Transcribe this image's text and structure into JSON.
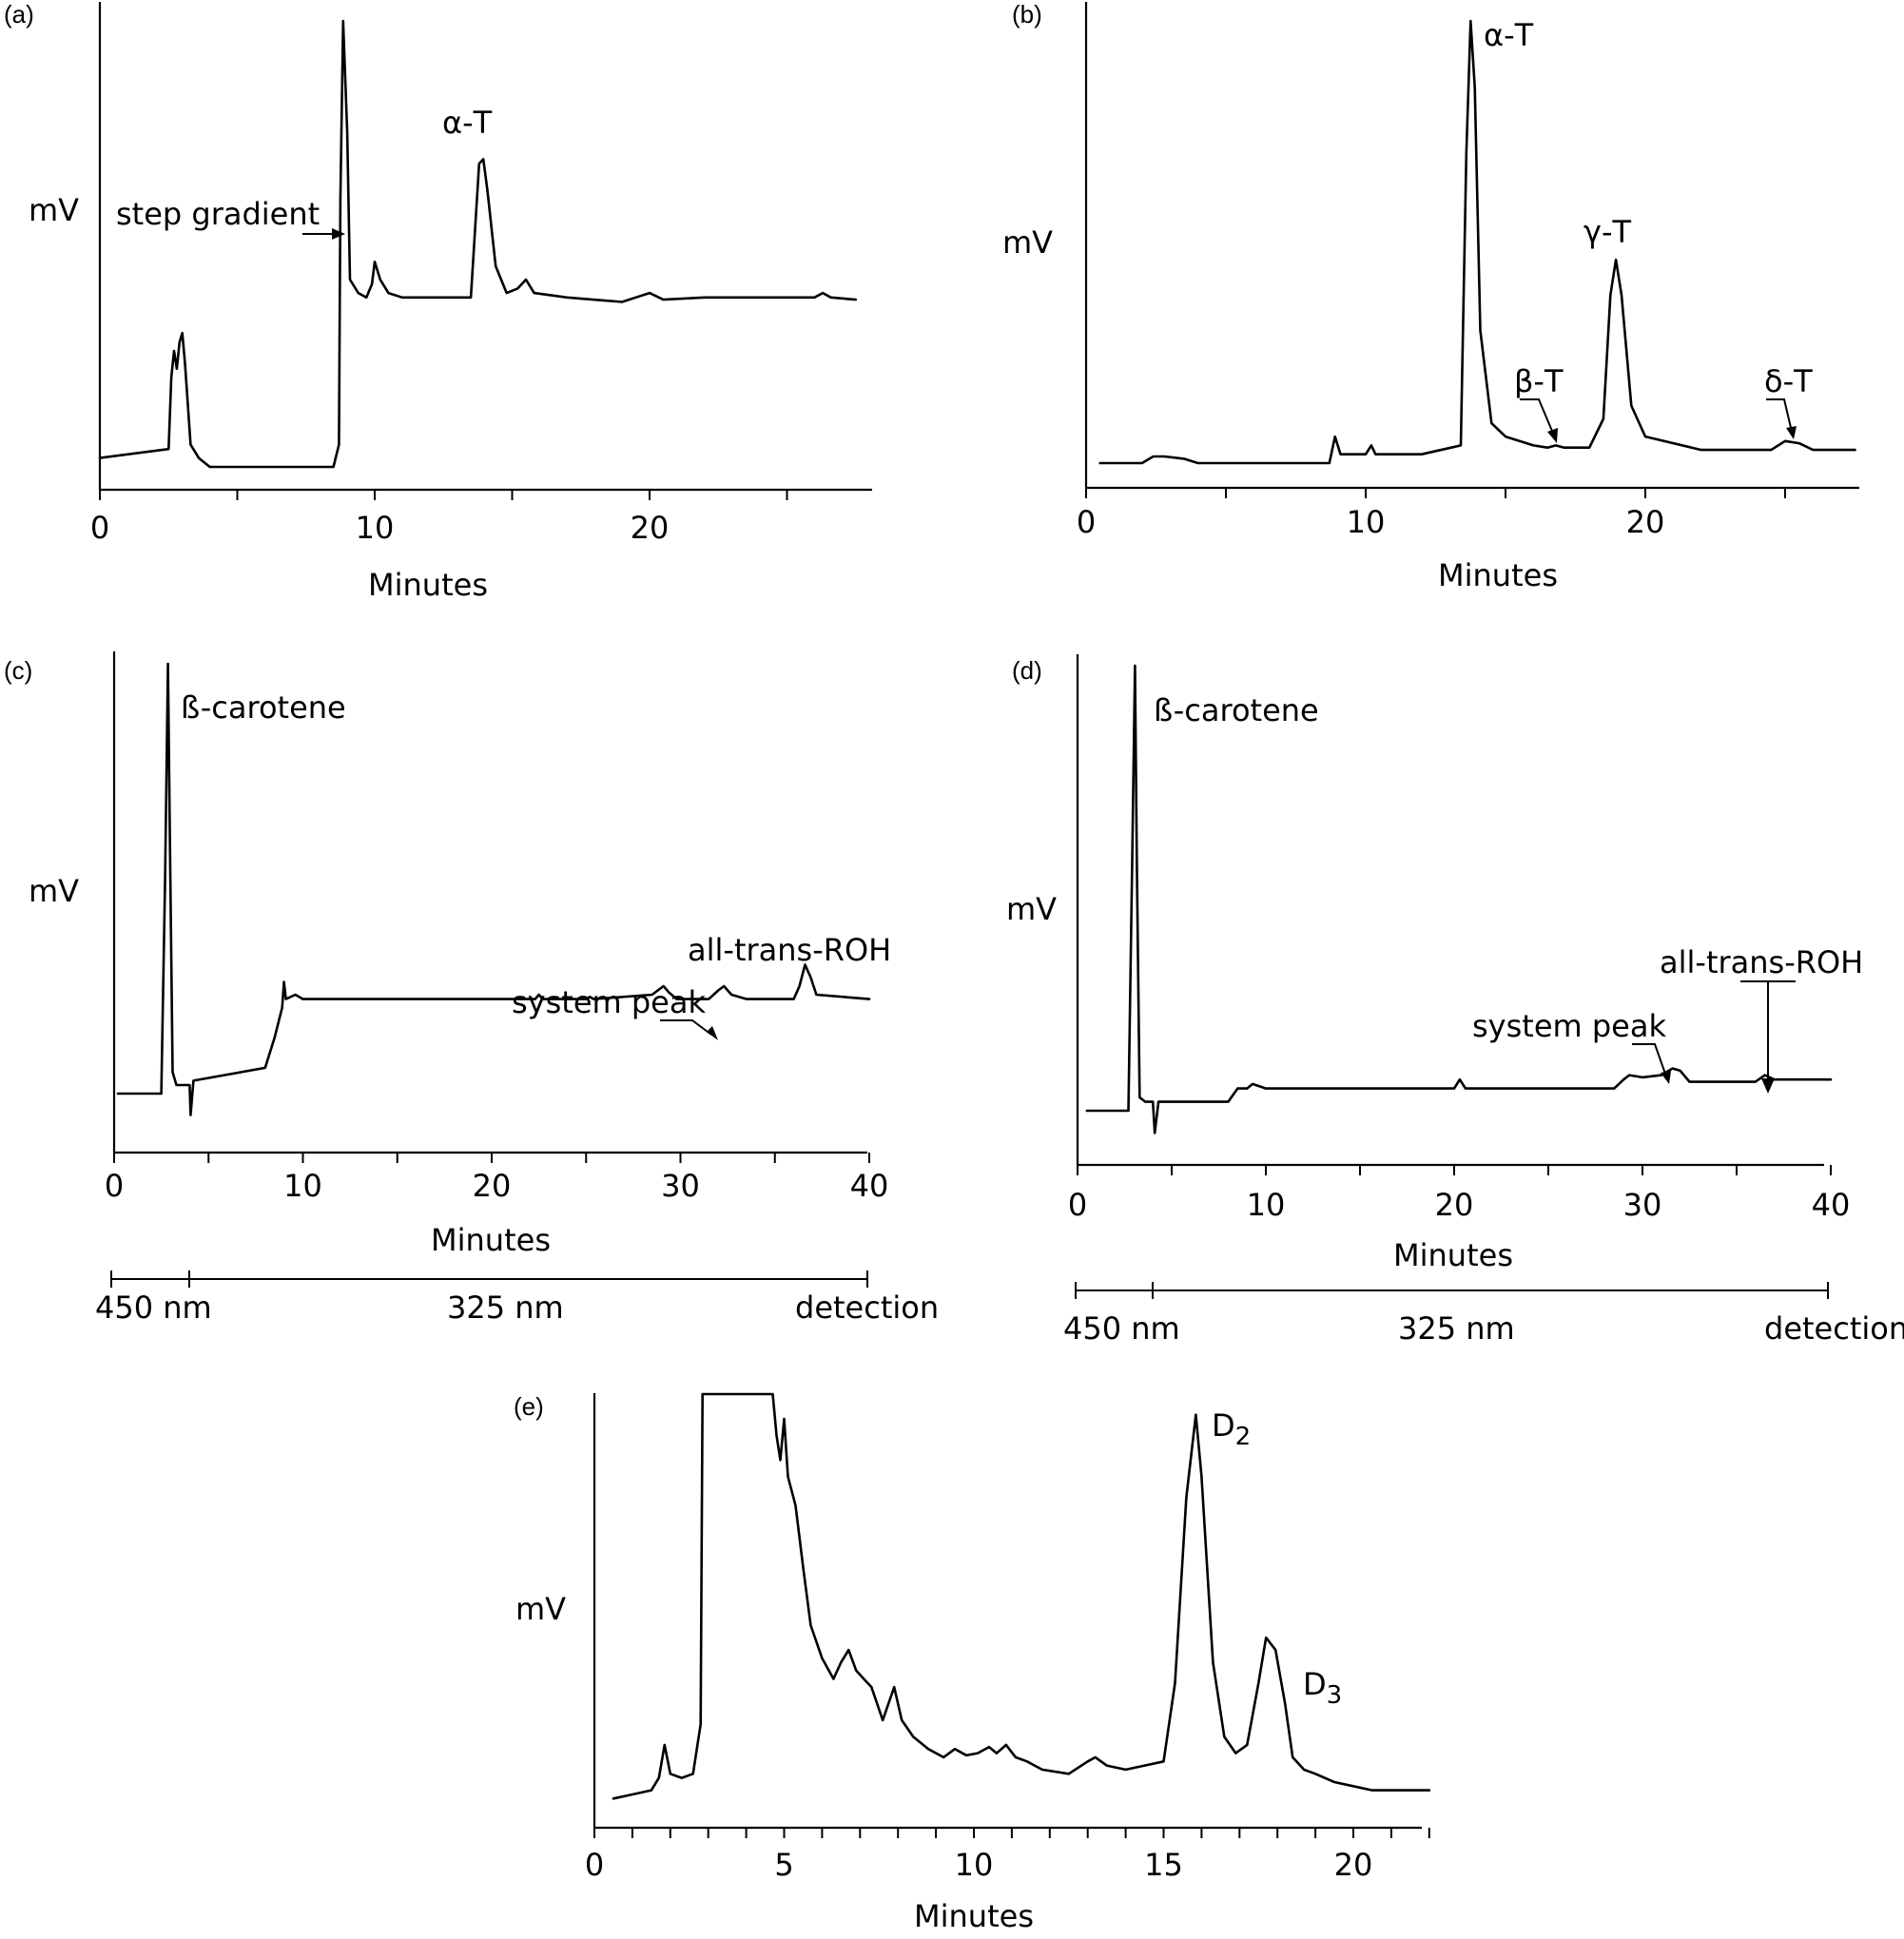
{
  "chart_data": [
    {
      "panel": "(a)",
      "type": "line",
      "ylabel": "mV",
      "xlabel": "Minutes",
      "xlim": [
        0,
        27.5
      ],
      "xticks": [
        0,
        10,
        20
      ],
      "annotations": [
        "α-T",
        "step gradient"
      ],
      "series": [
        {
          "x": [
            0,
            2.5,
            2.6,
            2.7,
            2.8,
            2.9,
            3.0,
            3.1,
            3.3,
            3.6,
            4.0,
            5.0,
            6.0,
            7.0,
            8.5,
            8.7,
            8.75,
            8.85,
            9.0,
            9.1,
            9.4,
            9.7,
            9.9,
            10.0,
            10.2,
            10.5,
            11.0,
            12.0,
            13.5,
            13.6,
            13.8,
            13.95,
            14.1,
            14.4,
            14.8,
            15.2,
            15.5,
            15.8,
            17.0,
            19.0,
            19.5,
            20.0,
            20.5,
            22.0,
            26.0,
            26.3,
            26.6,
            27.5
          ],
          "y": [
            0.02,
            0.04,
            0.2,
            0.26,
            0.22,
            0.28,
            0.3,
            0.23,
            0.05,
            0.02,
            0.0,
            0.0,
            0.0,
            0.0,
            0.0,
            0.05,
            0.6,
            1.0,
            0.75,
            0.42,
            0.39,
            0.38,
            0.41,
            0.46,
            0.42,
            0.39,
            0.38,
            0.38,
            0.38,
            0.48,
            0.68,
            0.69,
            0.62,
            0.45,
            0.39,
            0.4,
            0.42,
            0.39,
            0.38,
            0.37,
            0.38,
            0.39,
            0.375,
            0.38,
            0.38,
            0.39,
            0.38,
            0.375
          ]
        }
      ]
    },
    {
      "panel": "(b)",
      "type": "line",
      "ylabel": "mV",
      "xlabel": "Minutes",
      "xlim": [
        0,
        27.5
      ],
      "xticks": [
        0,
        10,
        20
      ],
      "annotations": [
        "α-T",
        "γ-T",
        "β-T",
        "δ-T"
      ],
      "series": [
        {
          "x": [
            0.5,
            2.0,
            2.4,
            2.8,
            3.5,
            4.0,
            8.7,
            8.9,
            9.0,
            9.1,
            9.3,
            10.0,
            10.2,
            10.35,
            12.0,
            13.4,
            13.6,
            13.75,
            13.9,
            14.1,
            14.5,
            15.0,
            15.5,
            16.0,
            16.5,
            16.8,
            17.1,
            18.0,
            18.5,
            18.75,
            18.95,
            19.15,
            19.5,
            20.0,
            22.0,
            24.5,
            25.0,
            25.5,
            26.0,
            27.5
          ],
          "y": [
            0.0,
            0.0,
            0.015,
            0.015,
            0.01,
            0.0,
            0.0,
            0.06,
            0.04,
            0.02,
            0.02,
            0.02,
            0.04,
            0.02,
            0.02,
            0.04,
            0.7,
            1.0,
            0.85,
            0.3,
            0.09,
            0.06,
            0.05,
            0.04,
            0.035,
            0.04,
            0.035,
            0.035,
            0.1,
            0.38,
            0.46,
            0.38,
            0.13,
            0.06,
            0.03,
            0.03,
            0.05,
            0.045,
            0.03,
            0.03
          ]
        }
      ]
    },
    {
      "panel": "(c)",
      "type": "line",
      "ylabel": "mV",
      "xlabel": "Minutes",
      "xlim": [
        0,
        40
      ],
      "xticks": [
        0,
        10,
        20,
        30,
        40
      ],
      "annotations": [
        "ß-carotene",
        "system peak",
        "all-trans-ROH"
      ],
      "detection_scale": [
        "450 nm",
        "325 nm",
        "detection"
      ],
      "series": [
        {
          "x": [
            0.2,
            2.5,
            2.7,
            2.85,
            2.95,
            3.1,
            3.3,
            3.6,
            4.0,
            4.05,
            4.2,
            8.0,
            8.5,
            8.9,
            9.0,
            9.1,
            9.6,
            10.0,
            12.0,
            20.0,
            22.3,
            22.5,
            22.7,
            25.0,
            25.2,
            25.4,
            28.5,
            29.1,
            29.4,
            29.8,
            31.5,
            32.0,
            32.3,
            32.7,
            33.5,
            36.0,
            36.3,
            36.6,
            36.9,
            37.2,
            40.0
          ],
          "y": [
            0.0,
            0.0,
            0.5,
            1.0,
            0.6,
            0.05,
            0.02,
            0.02,
            0.02,
            -0.05,
            0.03,
            0.06,
            0.13,
            0.2,
            0.26,
            0.22,
            0.23,
            0.22,
            0.22,
            0.22,
            0.22,
            0.23,
            0.22,
            0.22,
            0.225,
            0.22,
            0.23,
            0.25,
            0.235,
            0.22,
            0.22,
            0.24,
            0.25,
            0.23,
            0.22,
            0.22,
            0.25,
            0.3,
            0.27,
            0.23,
            0.22
          ]
        }
      ]
    },
    {
      "panel": "(d)",
      "type": "line",
      "ylabel": "mV",
      "xlabel": "Minutes",
      "xlim": [
        0,
        40
      ],
      "xticks": [
        0,
        10,
        20,
        30,
        40
      ],
      "annotations": [
        "ß-carotene",
        "system peak",
        "all-trans-ROH"
      ],
      "detection_scale": [
        "450 nm",
        "325 nm",
        "detection"
      ],
      "series": [
        {
          "x": [
            0.5,
            2.7,
            2.9,
            3.05,
            3.15,
            3.3,
            3.6,
            4.0,
            4.1,
            4.3,
            8.0,
            8.5,
            9.0,
            9.3,
            10.0,
            15.0,
            20.0,
            20.3,
            20.6,
            28.5,
            29.0,
            29.3,
            30.0,
            31.0,
            31.6,
            32.0,
            32.5,
            36.0,
            36.5,
            37.0,
            40.0
          ],
          "y": [
            0.0,
            0.0,
            0.55,
            1.0,
            0.55,
            0.03,
            0.02,
            0.02,
            -0.05,
            0.02,
            0.02,
            0.05,
            0.05,
            0.06,
            0.05,
            0.05,
            0.05,
            0.07,
            0.05,
            0.05,
            0.07,
            0.08,
            0.075,
            0.08,
            0.095,
            0.09,
            0.065,
            0.065,
            0.08,
            0.07,
            0.07
          ]
        }
      ]
    },
    {
      "panel": "(e)",
      "type": "line",
      "ylabel": "mV",
      "xlabel": "Minutes",
      "xlim": [
        0,
        22
      ],
      "xticks": [
        0,
        5,
        10,
        15,
        20
      ],
      "annotations": [
        "D2",
        "D3"
      ],
      "series": [
        {
          "x": [
            0.5,
            1.0,
            1.5,
            1.7,
            1.85,
            2.0,
            2.3,
            2.6,
            2.8,
            2.85,
            3.0,
            4.0,
            4.7,
            4.8,
            4.9,
            5.0,
            5.1,
            5.3,
            5.5,
            5.7,
            6.0,
            6.3,
            6.5,
            6.7,
            6.9,
            7.1,
            7.3,
            7.6,
            7.9,
            8.1,
            8.4,
            8.8,
            9.2,
            9.5,
            9.8,
            10.1,
            10.4,
            10.6,
            10.85,
            11.1,
            11.4,
            11.8,
            12.5,
            13.0,
            13.2,
            13.5,
            14.0,
            14.5,
            15.0,
            15.3,
            15.6,
            15.85,
            16.0,
            16.3,
            16.6,
            16.9,
            17.2,
            17.5,
            17.7,
            17.95,
            18.2,
            18.4,
            18.7,
            19.0,
            19.5,
            20.0,
            20.5,
            22.0
          ],
          "y": [
            0.02,
            0.03,
            0.04,
            0.07,
            0.15,
            0.08,
            0.07,
            0.08,
            0.2,
            1.0,
            1.0,
            1.0,
            1.0,
            0.9,
            0.84,
            0.94,
            0.8,
            0.73,
            0.58,
            0.44,
            0.36,
            0.31,
            0.35,
            0.38,
            0.33,
            0.31,
            0.29,
            0.21,
            0.29,
            0.21,
            0.17,
            0.14,
            0.12,
            0.14,
            0.125,
            0.13,
            0.145,
            0.13,
            0.15,
            0.12,
            0.11,
            0.09,
            0.08,
            0.11,
            0.12,
            0.1,
            0.09,
            0.1,
            0.11,
            0.3,
            0.75,
            0.95,
            0.8,
            0.35,
            0.17,
            0.13,
            0.15,
            0.3,
            0.41,
            0.38,
            0.25,
            0.12,
            0.09,
            0.08,
            0.06,
            0.05,
            0.04,
            0.04
          ]
        }
      ]
    }
  ]
}
